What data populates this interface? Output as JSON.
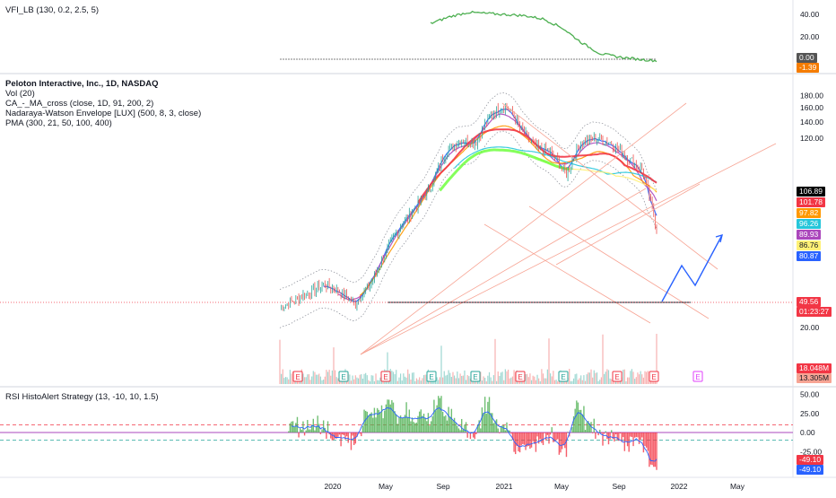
{
  "panes": {
    "vfi": {
      "label": "VFI_LB (130, 0.2, 2.5, 5)",
      "ticks": [
        "40.00",
        "20.00"
      ],
      "tags": [
        {
          "text": "0.00",
          "bg": "#555555",
          "fg": "#ffffff"
        },
        {
          "text": "-1.39",
          "bg": "#f57c00",
          "fg": "#ffffff"
        }
      ]
    },
    "main": {
      "labels": [
        "Peloton Interactive, Inc., 1D, NASDAQ",
        "Vol (20)",
        "CA_-_MA_cross (close, 1D, 91, 200, 2)",
        "Nadaraya-Watson Envelope [LUX] (500, 8, 3, close)",
        "PMA (300, 21, 50, 100, 400)"
      ],
      "ticks": [
        "180.00",
        "160.00",
        "140.00",
        "120.00",
        "60.00",
        "40.00",
        "20.00"
      ],
      "price_tags": [
        {
          "text": "106.89",
          "bg": "#000000",
          "fg": "#ffffff"
        },
        {
          "text": "101.78",
          "bg": "#f23645",
          "fg": "#ffffff"
        },
        {
          "text": "97.82",
          "bg": "#ff9800",
          "fg": "#ffffff"
        },
        {
          "text": "96.26",
          "bg": "#26c6da",
          "fg": "#ffffff"
        },
        {
          "text": "89.93",
          "bg": "#ab47bc",
          "fg": "#ffffff"
        },
        {
          "text": "86.76",
          "bg": "#fff176",
          "fg": "#131722"
        },
        {
          "text": "80.87",
          "bg": "#2962ff",
          "fg": "#ffffff"
        },
        {
          "text": "49.56",
          "bg": "#f23645",
          "fg": "#ffffff"
        },
        {
          "text": "01:23:27",
          "bg": "#f23645",
          "fg": "#ffffff"
        },
        {
          "text": "18.048M",
          "bg": "#f23645",
          "fg": "#ffffff"
        },
        {
          "text": "13.305M",
          "bg": "#f7a494",
          "fg": "#131722"
        }
      ],
      "earnings_marker": "E"
    },
    "rsi": {
      "label": "RSI HistoAlert Strategy (13, -10, 10, 1.5)",
      "ticks": [
        "50.00",
        "25.00",
        "0.00",
        "-25.00"
      ],
      "tags": [
        {
          "text": "-49.10",
          "bg": "#f23645",
          "fg": "#ffffff"
        },
        {
          "text": "-49.10",
          "bg": "#2962ff",
          "fg": "#ffffff"
        }
      ]
    }
  },
  "time_axis": [
    "2020",
    "May",
    "Sep",
    "2021",
    "May",
    "Sep",
    "2022",
    "May"
  ],
  "chart_data": {
    "type": "line",
    "title": "Peloton Interactive, Inc., 1D, NASDAQ",
    "price_series": {
      "name": "Peloton Interactive, Inc.",
      "x": [
        "2019-10",
        "2019-11",
        "2019-12",
        "2020-01",
        "2020-02",
        "2020-03",
        "2020-04",
        "2020-05",
        "2020-06",
        "2020-07",
        "2020-08",
        "2020-09",
        "2020-10",
        "2020-11",
        "2020-12",
        "2021-01",
        "2021-02",
        "2021-03",
        "2021-04",
        "2021-05",
        "2021-06",
        "2021-07",
        "2021-08",
        "2021-09",
        "2021-10",
        "2021-11"
      ],
      "values": [
        24,
        26,
        28,
        30,
        28,
        25,
        30,
        40,
        52,
        62,
        75,
        105,
        118,
        115,
        150,
        165,
        130,
        110,
        105,
        85,
        115,
        120,
        115,
        100,
        90,
        49.56
      ]
    },
    "ma_lines": [
      {
        "name": "PMA 21",
        "color": "#2962ff",
        "last": 80.87
      },
      {
        "name": "PMA 50",
        "color": "#ab47bc",
        "last": 89.93
      },
      {
        "name": "PMA 100",
        "color": "#ff9800",
        "last": 97.82
      },
      {
        "name": "PMA 400",
        "color": "#26c6da",
        "last": 96.26
      },
      {
        "name": "MA 91",
        "color": "#f23645",
        "last": 101.78
      },
      {
        "name": "MA 200",
        "color": "#fff176",
        "last": 86.76
      }
    ],
    "last_price": 49.56,
    "support_level": 49.56,
    "ylim": [
      10,
      190
    ],
    "volume": {
      "last": "18.048M",
      "average": "13.305M"
    },
    "vfi": {
      "ylim": [
        -5,
        48
      ],
      "last": -1.39,
      "values": [
        32,
        38,
        42,
        41,
        40,
        39,
        36,
        28,
        15,
        5,
        2,
        0,
        -1.39
      ]
    },
    "rsi_histo": {
      "ylim": [
        -60,
        60
      ],
      "levels": [
        10,
        0,
        -10
      ],
      "last": -49.1
    }
  }
}
